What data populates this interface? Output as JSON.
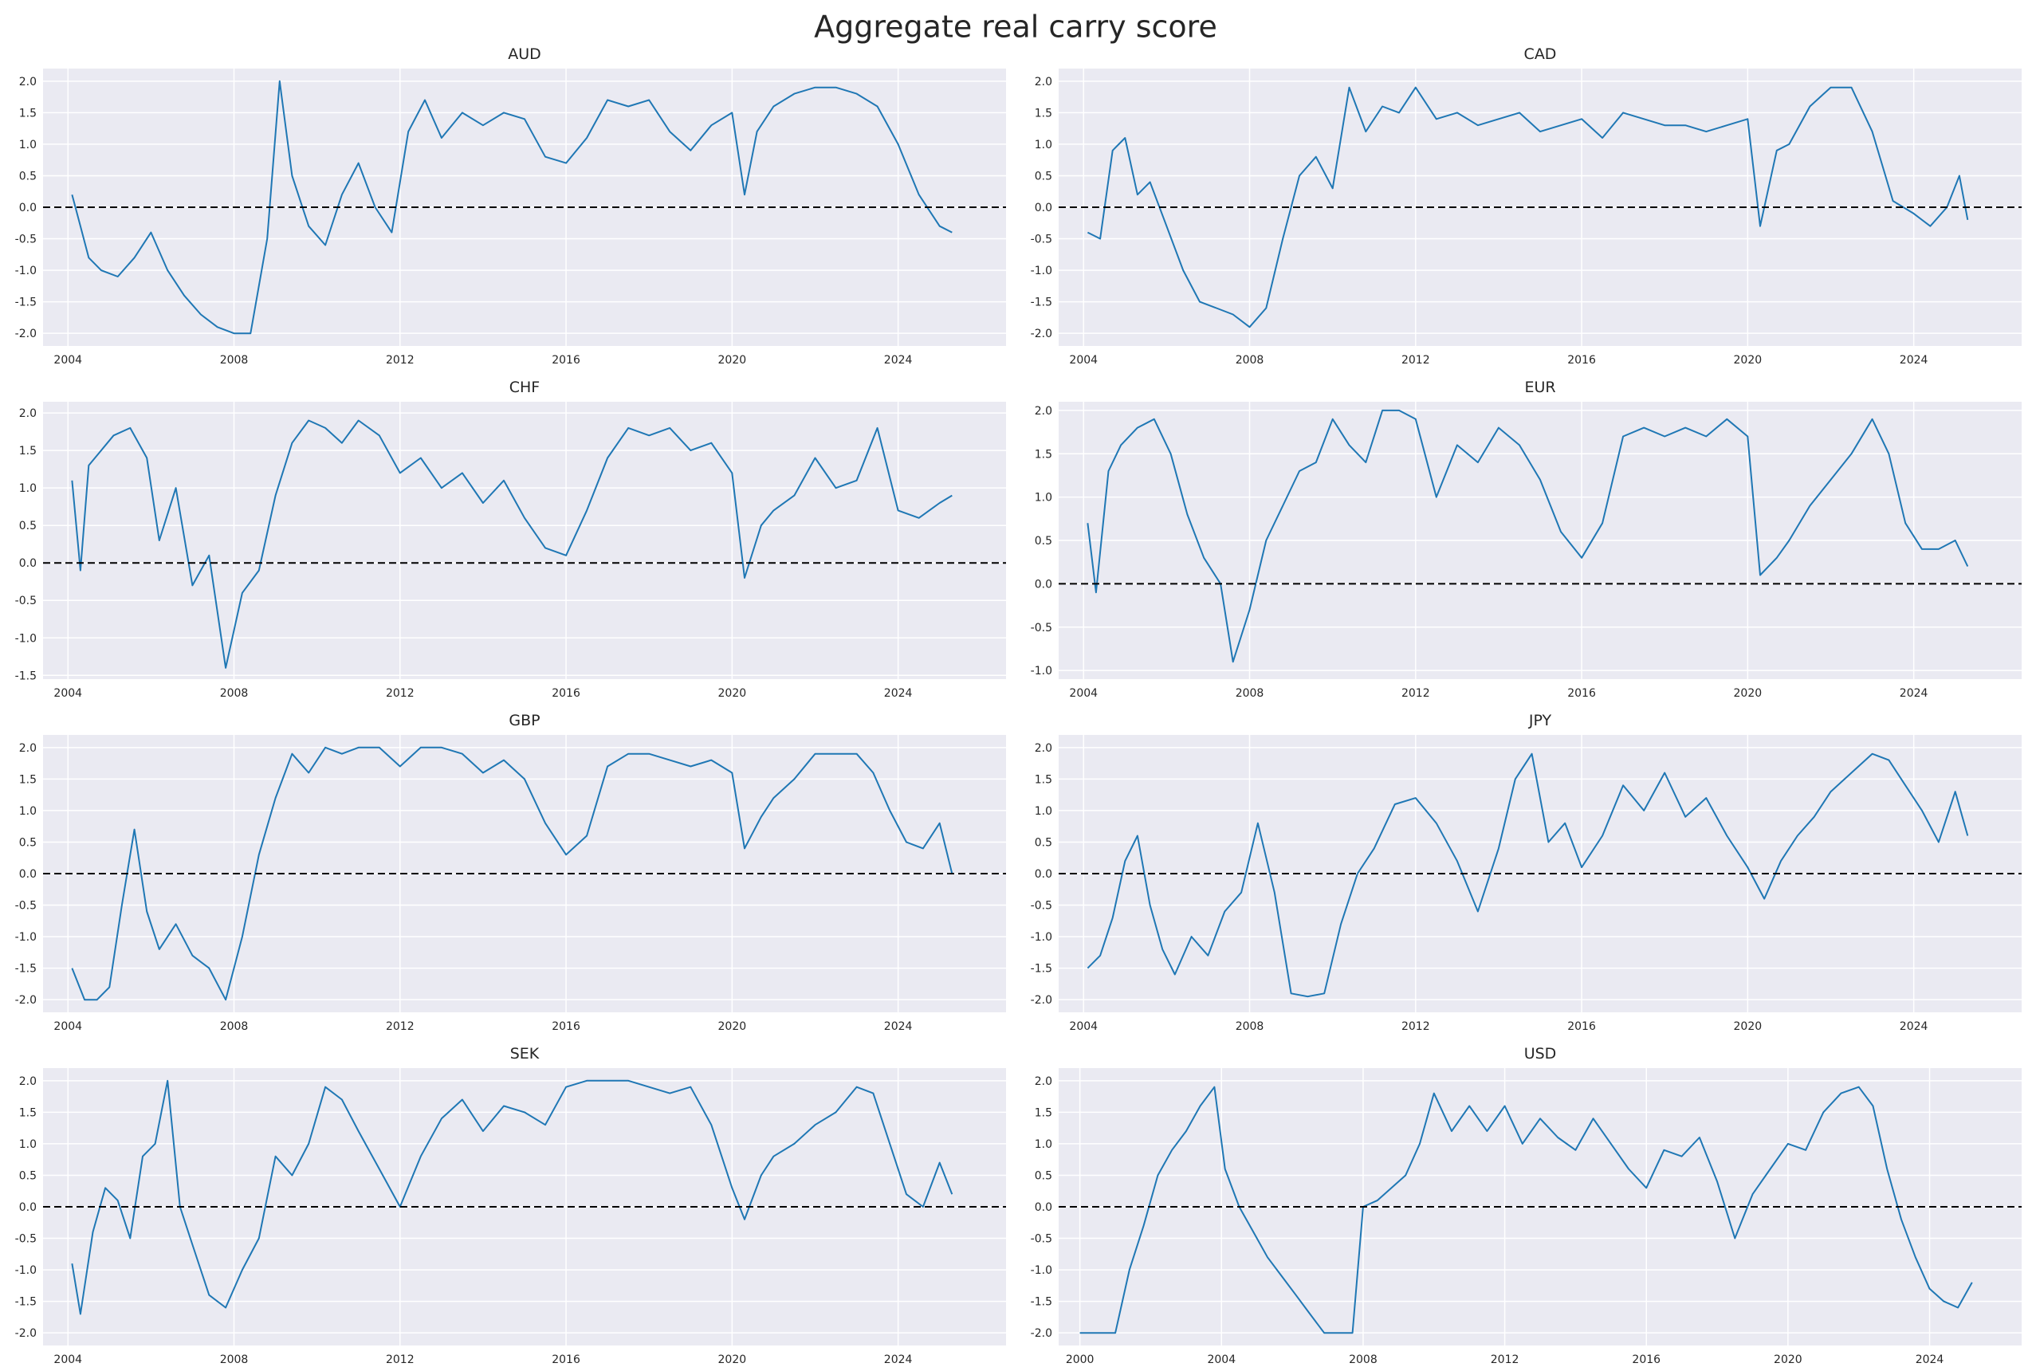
{
  "title": "Aggregate real carry score",
  "colors": {
    "background": "#eaeaf2",
    "grid": "#ffffff",
    "line": "#1f77b4",
    "zero_line": "#000000",
    "text": "#262626"
  },
  "chart_data": [
    {
      "type": "line",
      "title": "AUD",
      "xlim": [
        2003.4,
        2026.6
      ],
      "ylim": [
        -2.2,
        2.2
      ],
      "xticks": [
        2004,
        2008,
        2012,
        2016,
        2020,
        2024
      ],
      "yticks": [
        -2.0,
        -1.5,
        -1.0,
        -0.5,
        0.0,
        0.5,
        1.0,
        1.5,
        2.0
      ],
      "zero_line": true,
      "x": [
        2004.1,
        2004.3,
        2004.5,
        2004.8,
        2005.2,
        2005.6,
        2006.0,
        2006.4,
        2006.8,
        2007.2,
        2007.6,
        2008.0,
        2008.4,
        2008.8,
        2009.1,
        2009.4,
        2009.8,
        2010.2,
        2010.6,
        2011.0,
        2011.4,
        2011.8,
        2012.2,
        2012.6,
        2013.0,
        2013.5,
        2014.0,
        2014.5,
        2015.0,
        2015.5,
        2016.0,
        2016.5,
        2017.0,
        2017.5,
        2018.0,
        2018.5,
        2019.0,
        2019.5,
        2020.0,
        2020.3,
        2020.6,
        2021.0,
        2021.5,
        2022.0,
        2022.5,
        2023.0,
        2023.5,
        2024.0,
        2024.5,
        2025.0,
        2025.3
      ],
      "y": [
        0.2,
        -0.3,
        -0.8,
        -1.0,
        -1.1,
        -0.8,
        -0.4,
        -1.0,
        -1.4,
        -1.7,
        -1.9,
        -2.0,
        -2.0,
        -0.5,
        2.0,
        0.5,
        -0.3,
        -0.6,
        0.2,
        0.7,
        0.0,
        -0.4,
        1.2,
        1.7,
        1.1,
        1.5,
        1.3,
        1.5,
        1.4,
        0.8,
        0.7,
        1.1,
        1.7,
        1.6,
        1.7,
        1.2,
        0.9,
        1.3,
        1.5,
        0.2,
        1.2,
        1.6,
        1.8,
        1.9,
        1.9,
        1.8,
        1.6,
        1.0,
        0.2,
        -0.3,
        -0.4
      ]
    },
    {
      "type": "line",
      "title": "CAD",
      "xlim": [
        2003.4,
        2026.6
      ],
      "ylim": [
        -2.2,
        2.2
      ],
      "xticks": [
        2004,
        2008,
        2012,
        2016,
        2020,
        2024
      ],
      "yticks": [
        -2.0,
        -1.5,
        -1.0,
        -0.5,
        0.0,
        0.5,
        1.0,
        1.5,
        2.0
      ],
      "zero_line": true,
      "x": [
        2004.1,
        2004.4,
        2004.7,
        2005.0,
        2005.3,
        2005.6,
        2006.0,
        2006.4,
        2006.8,
        2007.2,
        2007.6,
        2008.0,
        2008.4,
        2008.8,
        2009.2,
        2009.6,
        2010.0,
        2010.4,
        2010.8,
        2011.2,
        2011.6,
        2012.0,
        2012.5,
        2013.0,
        2013.5,
        2014.0,
        2014.5,
        2015.0,
        2015.5,
        2016.0,
        2016.5,
        2017.0,
        2017.5,
        2018.0,
        2018.5,
        2019.0,
        2019.5,
        2020.0,
        2020.3,
        2020.7,
        2021.0,
        2021.5,
        2022.0,
        2022.5,
        2023.0,
        2023.5,
        2024.0,
        2024.4,
        2024.8,
        2025.1,
        2025.3
      ],
      "y": [
        -0.4,
        -0.5,
        0.9,
        1.1,
        0.2,
        0.4,
        -0.3,
        -1.0,
        -1.5,
        -1.6,
        -1.7,
        -1.9,
        -1.6,
        -0.5,
        0.5,
        0.8,
        0.3,
        1.9,
        1.2,
        1.6,
        1.5,
        1.9,
        1.4,
        1.5,
        1.3,
        1.4,
        1.5,
        1.2,
        1.3,
        1.4,
        1.1,
        1.5,
        1.4,
        1.3,
        1.3,
        1.2,
        1.3,
        1.4,
        -0.3,
        0.9,
        1.0,
        1.6,
        1.9,
        1.9,
        1.2,
        0.1,
        -0.1,
        -0.3,
        0.0,
        0.5,
        -0.2
      ]
    },
    {
      "type": "line",
      "title": "CHF",
      "xlim": [
        2003.4,
        2026.6
      ],
      "ylim": [
        -1.55,
        2.15
      ],
      "xticks": [
        2004,
        2008,
        2012,
        2016,
        2020,
        2024
      ],
      "yticks": [
        -1.5,
        -1.0,
        -0.5,
        0.0,
        0.5,
        1.0,
        1.5,
        2.0
      ],
      "zero_line": true,
      "x": [
        2004.1,
        2004.3,
        2004.5,
        2004.8,
        2005.1,
        2005.5,
        2005.9,
        2006.2,
        2006.6,
        2007.0,
        2007.4,
        2007.8,
        2008.2,
        2008.6,
        2009.0,
        2009.4,
        2009.8,
        2010.2,
        2010.6,
        2011.0,
        2011.5,
        2012.0,
        2012.5,
        2013.0,
        2013.5,
        2014.0,
        2014.5,
        2015.0,
        2015.5,
        2016.0,
        2016.5,
        2017.0,
        2017.5,
        2018.0,
        2018.5,
        2019.0,
        2019.5,
        2020.0,
        2020.3,
        2020.7,
        2021.0,
        2021.5,
        2022.0,
        2022.5,
        2023.0,
        2023.5,
        2024.0,
        2024.5,
        2025.0,
        2025.3
      ],
      "y": [
        1.1,
        -0.1,
        1.3,
        1.5,
        1.7,
        1.8,
        1.4,
        0.3,
        1.0,
        -0.3,
        0.1,
        -1.4,
        -0.4,
        -0.1,
        0.9,
        1.6,
        1.9,
        1.8,
        1.6,
        1.9,
        1.7,
        1.2,
        1.4,
        1.0,
        1.2,
        0.8,
        1.1,
        0.6,
        0.2,
        0.1,
        0.7,
        1.4,
        1.8,
        1.7,
        1.8,
        1.5,
        1.6,
        1.2,
        -0.2,
        0.5,
        0.7,
        0.9,
        1.4,
        1.0,
        1.1,
        1.8,
        0.7,
        0.6,
        0.8,
        0.9
      ]
    },
    {
      "type": "line",
      "title": "EUR",
      "xlim": [
        2003.4,
        2026.6
      ],
      "ylim": [
        -1.1,
        2.1
      ],
      "xticks": [
        2004,
        2008,
        2012,
        2016,
        2020,
        2024
      ],
      "yticks": [
        -1.0,
        -0.5,
        0.0,
        0.5,
        1.0,
        1.5,
        2.0
      ],
      "zero_line": true,
      "x": [
        2004.1,
        2004.3,
        2004.6,
        2004.9,
        2005.3,
        2005.7,
        2006.1,
        2006.5,
        2006.9,
        2007.3,
        2007.6,
        2008.0,
        2008.4,
        2008.8,
        2009.2,
        2009.6,
        2010.0,
        2010.4,
        2010.8,
        2011.2,
        2011.6,
        2012.0,
        2012.5,
        2013.0,
        2013.5,
        2014.0,
        2014.5,
        2015.0,
        2015.5,
        2016.0,
        2016.5,
        2017.0,
        2017.5,
        2018.0,
        2018.5,
        2019.0,
        2019.5,
        2020.0,
        2020.3,
        2020.7,
        2021.0,
        2021.5,
        2022.0,
        2022.5,
        2023.0,
        2023.4,
        2023.8,
        2024.2,
        2024.6,
        2025.0,
        2025.3
      ],
      "y": [
        0.7,
        -0.1,
        1.3,
        1.6,
        1.8,
        1.9,
        1.5,
        0.8,
        0.3,
        0.0,
        -0.9,
        -0.3,
        0.5,
        0.9,
        1.3,
        1.4,
        1.9,
        1.6,
        1.4,
        2.0,
        2.0,
        1.9,
        1.0,
        1.6,
        1.4,
        1.8,
        1.6,
        1.2,
        0.6,
        0.3,
        0.7,
        1.7,
        1.8,
        1.7,
        1.8,
        1.7,
        1.9,
        1.7,
        0.1,
        0.3,
        0.5,
        0.9,
        1.2,
        1.5,
        1.9,
        1.5,
        0.7,
        0.4,
        0.4,
        0.5,
        0.2
      ]
    },
    {
      "type": "line",
      "title": "GBP",
      "xlim": [
        2003.4,
        2026.6
      ],
      "ylim": [
        -2.2,
        2.2
      ],
      "xticks": [
        2004,
        2008,
        2012,
        2016,
        2020,
        2024
      ],
      "yticks": [
        -2.0,
        -1.5,
        -1.0,
        -0.5,
        0.0,
        0.5,
        1.0,
        1.5,
        2.0
      ],
      "zero_line": true,
      "x": [
        2004.1,
        2004.4,
        2004.7,
        2005.0,
        2005.3,
        2005.6,
        2005.9,
        2006.2,
        2006.6,
        2007.0,
        2007.4,
        2007.8,
        2008.2,
        2008.6,
        2009.0,
        2009.4,
        2009.8,
        2010.2,
        2010.6,
        2011.0,
        2011.5,
        2012.0,
        2012.5,
        2013.0,
        2013.5,
        2014.0,
        2014.5,
        2015.0,
        2015.5,
        2016.0,
        2016.5,
        2017.0,
        2017.5,
        2018.0,
        2018.5,
        2019.0,
        2019.5,
        2020.0,
        2020.3,
        2020.7,
        2021.0,
        2021.5,
        2022.0,
        2022.5,
        2023.0,
        2023.4,
        2023.8,
        2024.2,
        2024.6,
        2025.0,
        2025.3
      ],
      "y": [
        -1.5,
        -2.0,
        -2.0,
        -1.8,
        -0.5,
        0.7,
        -0.6,
        -1.2,
        -0.8,
        -1.3,
        -1.5,
        -2.0,
        -1.0,
        0.3,
        1.2,
        1.9,
        1.6,
        2.0,
        1.9,
        2.0,
        2.0,
        1.7,
        2.0,
        2.0,
        1.9,
        1.6,
        1.8,
        1.5,
        0.8,
        0.3,
        0.6,
        1.7,
        1.9,
        1.9,
        1.8,
        1.7,
        1.8,
        1.6,
        0.4,
        0.9,
        1.2,
        1.5,
        1.9,
        1.9,
        1.9,
        1.6,
        1.0,
        0.5,
        0.4,
        0.8,
        0.0
      ]
    },
    {
      "type": "line",
      "title": "JPY",
      "xlim": [
        2003.4,
        2026.6
      ],
      "ylim": [
        -2.2,
        2.2
      ],
      "xticks": [
        2004,
        2008,
        2012,
        2016,
        2020,
        2024
      ],
      "yticks": [
        -2.0,
        -1.5,
        -1.0,
        -0.5,
        0.0,
        0.5,
        1.0,
        1.5,
        2.0
      ],
      "zero_line": true,
      "x": [
        2004.1,
        2004.4,
        2004.7,
        2005.0,
        2005.3,
        2005.6,
        2005.9,
        2006.2,
        2006.6,
        2007.0,
        2007.4,
        2007.8,
        2008.2,
        2008.6,
        2009.0,
        2009.4,
        2009.8,
        2010.2,
        2010.6,
        2011.0,
        2011.5,
        2012.0,
        2012.5,
        2013.0,
        2013.5,
        2014.0,
        2014.4,
        2014.8,
        2015.2,
        2015.6,
        2016.0,
        2016.5,
        2017.0,
        2017.5,
        2018.0,
        2018.5,
        2019.0,
        2019.5,
        2020.0,
        2020.4,
        2020.8,
        2021.2,
        2021.6,
        2022.0,
        2022.5,
        2023.0,
        2023.4,
        2023.8,
        2024.2,
        2024.6,
        2025.0,
        2025.3
      ],
      "y": [
        -1.5,
        -1.3,
        -0.7,
        0.2,
        0.6,
        -0.5,
        -1.2,
        -1.6,
        -1.0,
        -1.3,
        -0.6,
        -0.3,
        0.8,
        -0.3,
        -1.9,
        -1.95,
        -1.9,
        -0.8,
        0.0,
        0.4,
        1.1,
        1.2,
        0.8,
        0.2,
        -0.6,
        0.4,
        1.5,
        1.9,
        0.5,
        0.8,
        0.1,
        0.6,
        1.4,
        1.0,
        1.6,
        0.9,
        1.2,
        0.6,
        0.1,
        -0.4,
        0.2,
        0.6,
        0.9,
        1.3,
        1.6,
        1.9,
        1.8,
        1.4,
        1.0,
        0.5,
        1.3,
        0.6
      ]
    },
    {
      "type": "line",
      "title": "SEK",
      "xlim": [
        2003.4,
        2026.6
      ],
      "ylim": [
        -2.2,
        2.2
      ],
      "xticks": [
        2004,
        2008,
        2012,
        2016,
        2020,
        2024
      ],
      "yticks": [
        -2.0,
        -1.5,
        -1.0,
        -0.5,
        0.0,
        0.5,
        1.0,
        1.5,
        2.0
      ],
      "zero_line": true,
      "x": [
        2004.1,
        2004.3,
        2004.6,
        2004.9,
        2005.2,
        2005.5,
        2005.8,
        2006.1,
        2006.4,
        2006.7,
        2007.0,
        2007.4,
        2007.8,
        2008.2,
        2008.6,
        2009.0,
        2009.4,
        2009.8,
        2010.2,
        2010.6,
        2011.0,
        2011.5,
        2012.0,
        2012.5,
        2013.0,
        2013.5,
        2014.0,
        2014.5,
        2015.0,
        2015.5,
        2016.0,
        2016.5,
        2017.0,
        2017.5,
        2018.0,
        2018.5,
        2019.0,
        2019.5,
        2020.0,
        2020.3,
        2020.7,
        2021.0,
        2021.5,
        2022.0,
        2022.5,
        2023.0,
        2023.4,
        2023.8,
        2024.2,
        2024.6,
        2025.0,
        2025.3
      ],
      "y": [
        -0.9,
        -1.7,
        -0.4,
        0.3,
        0.1,
        -0.5,
        0.8,
        1.0,
        2.0,
        0.0,
        -0.6,
        -1.4,
        -1.6,
        -1.0,
        -0.5,
        0.8,
        0.5,
        1.0,
        1.9,
        1.7,
        1.2,
        0.6,
        0.0,
        0.8,
        1.4,
        1.7,
        1.2,
        1.6,
        1.5,
        1.3,
        1.9,
        2.0,
        2.0,
        2.0,
        1.9,
        1.8,
        1.9,
        1.3,
        0.3,
        -0.2,
        0.5,
        0.8,
        1.0,
        1.3,
        1.5,
        1.9,
        1.8,
        1.0,
        0.2,
        0.0,
        0.7,
        0.2
      ]
    },
    {
      "type": "line",
      "title": "USD",
      "xlim": [
        1999.4,
        2026.6
      ],
      "ylim": [
        -2.2,
        2.2
      ],
      "xticks": [
        2000,
        2004,
        2008,
        2012,
        2016,
        2020,
        2024
      ],
      "yticks": [
        -2.0,
        -1.5,
        -1.0,
        -0.5,
        0.0,
        0.5,
        1.0,
        1.5,
        2.0
      ],
      "zero_line": true,
      "x": [
        2000.0,
        2000.5,
        2001.0,
        2001.4,
        2001.8,
        2002.2,
        2002.6,
        2003.0,
        2003.4,
        2003.8,
        2004.1,
        2004.5,
        2004.9,
        2005.3,
        2005.7,
        2006.1,
        2006.5,
        2006.9,
        2007.3,
        2007.7,
        2008.0,
        2008.4,
        2008.8,
        2009.2,
        2009.6,
        2010.0,
        2010.5,
        2011.0,
        2011.5,
        2012.0,
        2012.5,
        2013.0,
        2013.5,
        2014.0,
        2014.5,
        2015.0,
        2015.5,
        2016.0,
        2016.5,
        2017.0,
        2017.5,
        2018.0,
        2018.5,
        2019.0,
        2019.5,
        2020.0,
        2020.5,
        2021.0,
        2021.5,
        2022.0,
        2022.4,
        2022.8,
        2023.2,
        2023.6,
        2024.0,
        2024.4,
        2024.8,
        2025.2
      ],
      "y": [
        -2.0,
        -2.0,
        -2.0,
        -1.0,
        -0.3,
        0.5,
        0.9,
        1.2,
        1.6,
        1.9,
        0.6,
        0.0,
        -0.4,
        -0.8,
        -1.1,
        -1.4,
        -1.7,
        -2.0,
        -2.0,
        -2.0,
        0.0,
        0.1,
        0.3,
        0.5,
        1.0,
        1.8,
        1.2,
        1.6,
        1.2,
        1.6,
        1.0,
        1.4,
        1.1,
        0.9,
        1.4,
        1.0,
        0.6,
        0.3,
        0.9,
        0.8,
        1.1,
        0.4,
        -0.5,
        0.2,
        0.6,
        1.0,
        0.9,
        1.5,
        1.8,
        1.9,
        1.6,
        0.6,
        -0.2,
        -0.8,
        -1.3,
        -1.5,
        -1.6,
        -1.2
      ]
    }
  ]
}
